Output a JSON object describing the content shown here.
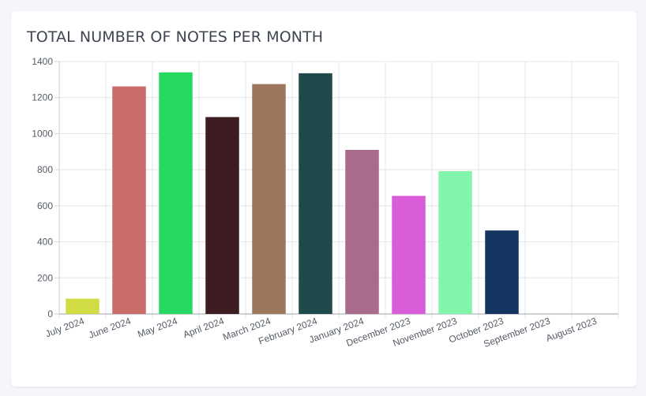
{
  "card": {
    "title": "TOTAL NUMBER OF NOTES PER MONTH"
  },
  "chart_data": {
    "type": "bar",
    "title": "TOTAL NUMBER OF NOTES PER MONTH",
    "xlabel": "",
    "ylabel": "",
    "categories": [
      "July 2024",
      "June 2024",
      "May 2024",
      "April 2024",
      "March 2024",
      "February 2024",
      "January 2024",
      "December 2023",
      "November 2023",
      "October 2023",
      "September 2023",
      "August 2023"
    ],
    "values": [
      85,
      1262,
      1340,
      1092,
      1275,
      1335,
      910,
      655,
      792,
      463,
      0,
      0
    ],
    "colors": [
      "#d1dc45",
      "#c96c69",
      "#27d960",
      "#3d1c22",
      "#9c775d",
      "#1f494a",
      "#a86b8b",
      "#d95cd8",
      "#83f5aa",
      "#133560",
      "#888888",
      "#888888"
    ],
    "ylim": [
      0,
      1400
    ],
    "yticks": [
      0,
      200,
      400,
      600,
      800,
      1000,
      1200,
      1400
    ],
    "grid": true,
    "legend": "none"
  }
}
